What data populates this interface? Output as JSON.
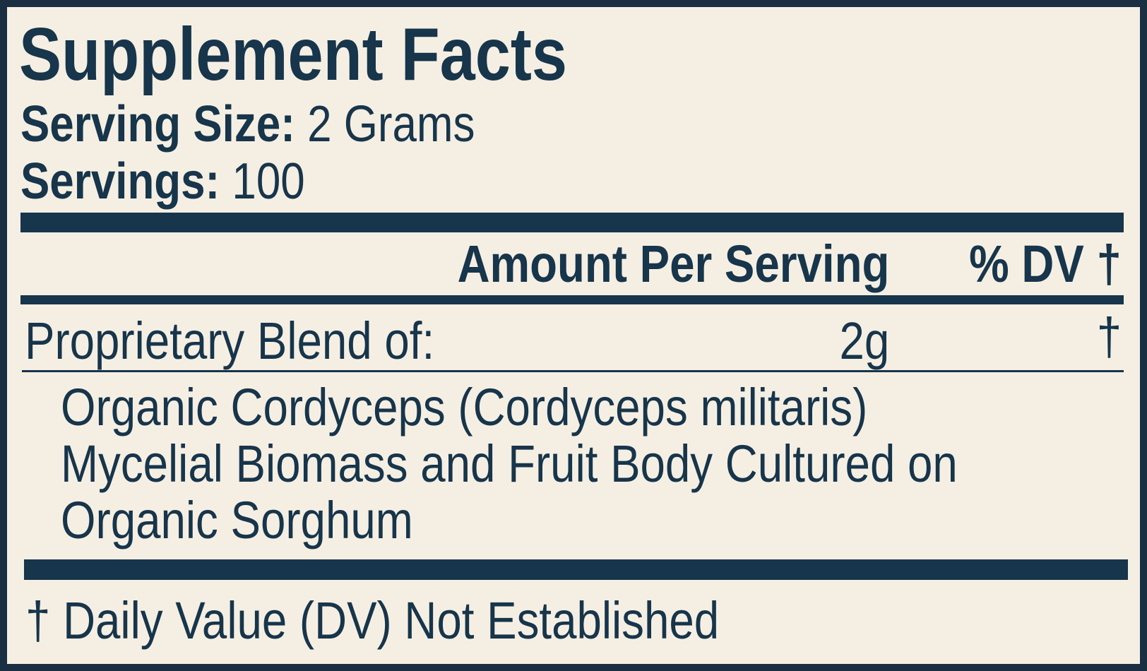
{
  "title": "Supplement Facts",
  "serving_size": {
    "label": "Serving Size:",
    "value": "2 Grams"
  },
  "servings": {
    "label": "Servings:",
    "value": "100"
  },
  "header": {
    "amount": "Amount Per Serving",
    "dv": "% DV †"
  },
  "blend": {
    "name": "Proprietary Blend of:",
    "amount": "2g",
    "dv": "†"
  },
  "ingredients": [
    "Organic Cordyceps (Cordyceps militaris)",
    "Mycelial Biomass and Fruit Body Cultured on",
    "Organic Sorghum"
  ],
  "footnote": "† Daily Value (DV) Not Established",
  "colors": {
    "ink": "#17354b",
    "background": "#f5efe3"
  }
}
